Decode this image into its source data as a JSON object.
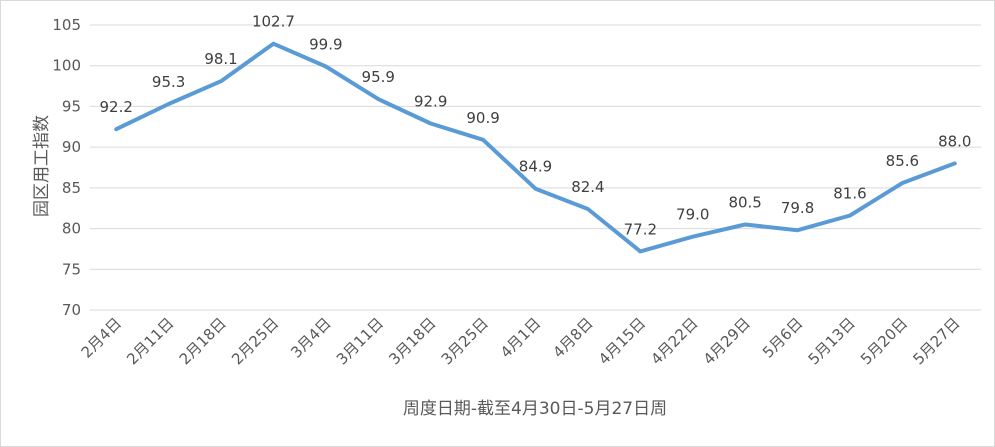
{
  "chart_data": {
    "type": "line",
    "title": "",
    "xlabel": "周度日期-截至4月30日-5月27日周",
    "ylabel": "园区用工指数",
    "ylim": [
      70,
      105
    ],
    "yticks": [
      "70",
      "75",
      "80",
      "85",
      "90",
      "95",
      "100",
      "105"
    ],
    "grid": true,
    "legend": "none",
    "categories": [
      "2月4日",
      "2月11日",
      "2月18日",
      "2月25日",
      "3月4日",
      "3月11日",
      "3月18日",
      "3月25日",
      "4月1日",
      "4月8日",
      "4月15日",
      "4月22日",
      "4月29日",
      "5月6日",
      "5月13日",
      "5月20日",
      "5月27日"
    ],
    "series": [
      {
        "values": [
          92.2,
          95.3,
          98.1,
          102.7,
          99.9,
          95.9,
          92.9,
          90.9,
          84.9,
          82.4,
          77.2,
          79.0,
          80.5,
          79.8,
          81.6,
          85.6,
          88.0
        ],
        "labels": [
          "92.2",
          "95.3",
          "98.1",
          "102.7",
          "99.9",
          "95.9",
          "92.9",
          "90.9",
          "84.9",
          "82.4",
          "77.2",
          "79.0",
          "80.5",
          "79.8",
          "81.6",
          "85.6",
          "88.0"
        ],
        "color": "#5b9bd5"
      }
    ]
  },
  "colors": {
    "line": "#5b9bd5",
    "grid": "#d9d9d9",
    "text": "#595959"
  }
}
